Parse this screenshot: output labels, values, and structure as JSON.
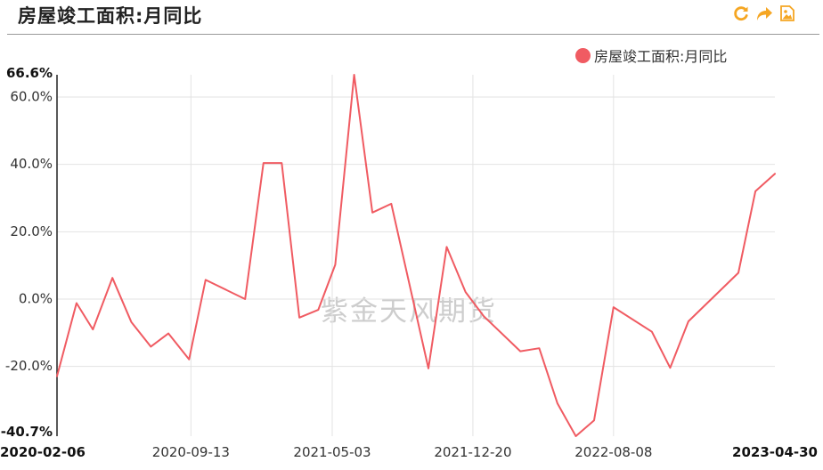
{
  "title": "房屋竣工面积:月同比",
  "toolbar": {
    "icons": [
      "refresh-icon",
      "share-icon",
      "save-image-icon"
    ],
    "color": "#f5a623"
  },
  "watermark": "紫金天风期货",
  "chart_data": {
    "type": "line",
    "title": "房屋竣工面积:月同比",
    "xlabel": "",
    "ylabel": "",
    "ylim": [
      -40.7,
      66.6
    ],
    "y_ticks": [
      {
        "value": 66.6,
        "label": "66.6%",
        "bold": true
      },
      {
        "value": 60,
        "label": "60.0%",
        "bold": false
      },
      {
        "value": 40,
        "label": "40.0%",
        "bold": false
      },
      {
        "value": 20,
        "label": "20.0%",
        "bold": false
      },
      {
        "value": 0,
        "label": "0.0%",
        "bold": false
      },
      {
        "value": -20,
        "label": "-20.0%",
        "bold": false
      },
      {
        "value": -40.7,
        "label": "-40.7%",
        "bold": true
      }
    ],
    "x_ticks": [
      {
        "date": "2020-02-06",
        "label": "2020-02-06",
        "bold": true,
        "grid": false
      },
      {
        "date": "2020-09-13",
        "label": "2020-09-13",
        "bold": false,
        "grid": true
      },
      {
        "date": "2021-05-03",
        "label": "2021-05-03",
        "bold": false,
        "grid": true
      },
      {
        "date": "2021-12-20",
        "label": "2021-12-20",
        "bold": false,
        "grid": true
      },
      {
        "date": "2022-08-08",
        "label": "2022-08-08",
        "bold": false,
        "grid": true
      },
      {
        "date": "2023-04-30",
        "label": "2023-04-30",
        "bold": true,
        "grid": false
      }
    ],
    "xlim": [
      "2020-02-06",
      "2023-04-30"
    ],
    "grid": true,
    "legend_position": "top-right",
    "series": [
      {
        "name": "房屋竣工面积:月同比",
        "color": "#f05b62",
        "points": [
          [
            "2020-02-06",
            -22.9
          ],
          [
            "2020-03-09",
            -1.2
          ],
          [
            "2020-04-05",
            -9.0
          ],
          [
            "2020-05-07",
            6.3
          ],
          [
            "2020-06-07",
            -6.8
          ],
          [
            "2020-07-09",
            -14.1
          ],
          [
            "2020-08-07",
            -10.2
          ],
          [
            "2020-09-10",
            -17.9
          ],
          [
            "2020-10-07",
            5.7
          ],
          [
            "2020-12-11",
            0.0
          ],
          [
            "2021-01-10",
            40.4
          ],
          [
            "2021-02-09",
            40.4
          ],
          [
            "2021-03-10",
            -5.5
          ],
          [
            "2021-04-10",
            -3.2
          ],
          [
            "2021-05-08",
            10.2
          ],
          [
            "2021-06-08",
            66.6
          ],
          [
            "2021-07-08",
            25.7
          ],
          [
            "2021-08-08",
            28.3
          ],
          [
            "2021-10-08",
            -20.6
          ],
          [
            "2021-11-07",
            15.5
          ],
          [
            "2021-12-08",
            2.1
          ],
          [
            "2022-01-07",
            -5.1
          ],
          [
            "2022-03-08",
            -15.5
          ],
          [
            "2022-04-08",
            -14.6
          ],
          [
            "2022-05-08",
            -31.0
          ],
          [
            "2022-06-07",
            -40.7
          ],
          [
            "2022-07-07",
            -36.0
          ],
          [
            "2022-08-08",
            -2.4
          ],
          [
            "2022-10-10",
            -9.7
          ],
          [
            "2022-11-09",
            -20.4
          ],
          [
            "2022-12-09",
            -6.6
          ],
          [
            "2023-03-01",
            7.8
          ],
          [
            "2023-03-29",
            32.0
          ],
          [
            "2023-04-30",
            37.2
          ]
        ]
      }
    ]
  }
}
